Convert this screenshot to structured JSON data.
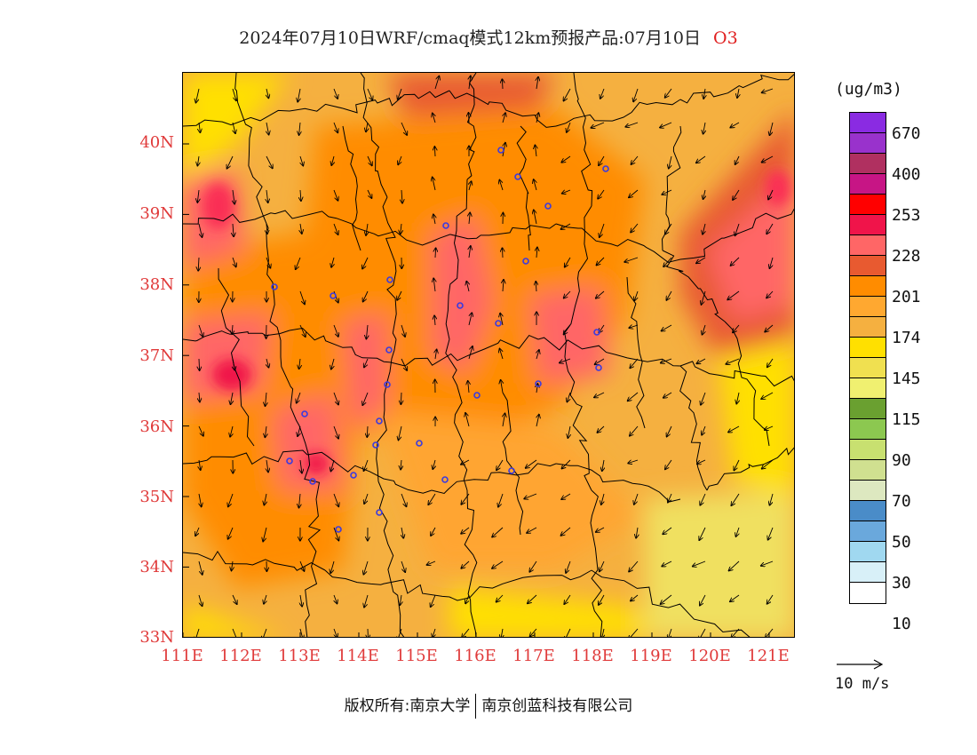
{
  "title": {
    "main": "2024年07月10日WRF/cmaq模式12km预报产品:07月10日",
    "pollutant": "O3"
  },
  "axes": {
    "lat_labels": [
      "40N",
      "39N",
      "38N",
      "37N",
      "36N",
      "35N",
      "34N",
      "33N"
    ],
    "lon_labels": [
      "111E",
      "112E",
      "113E",
      "114E",
      "115E",
      "116E",
      "117E",
      "118E",
      "119E",
      "120E",
      "121E"
    ]
  },
  "legend": {
    "unit": "(ug/m3)",
    "labels": [
      "670",
      "400",
      "253",
      "228",
      "201",
      "174",
      "145",
      "115",
      "90",
      "70",
      "50",
      "30",
      "10"
    ],
    "colors": [
      "#8a2be2",
      "#9932cc",
      "#b03060",
      "#c71585",
      "#ff0000",
      "#f0144a",
      "#fa2e55",
      "#ff6666",
      "#e85a30",
      "#ff8c00",
      "#ffa830",
      "#f5b040",
      "#ffff00",
      "#f0e050",
      "#f0f070",
      "#6aa030",
      "#8cc850",
      "#c8e070",
      "#d0e090",
      "#dde8c0",
      "#4a8cc8",
      "#6aa8dc",
      "#a0d8f0",
      "#d8f0f8",
      "#ffffff"
    ]
  },
  "wind_reference": {
    "label": "10 m/s"
  },
  "footer": {
    "copyright_label": "版权所有:",
    "org1": "南京大学",
    "org2": "南京创蓝科技有限公司"
  },
  "map": {
    "region": "North China Plain",
    "variable": "O3 surface concentration with 10m wind vectors"
  }
}
